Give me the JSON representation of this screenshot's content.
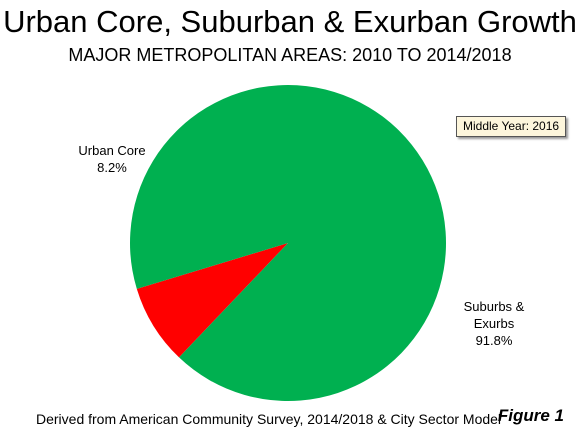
{
  "title": "Urban Core, Suburban & Exurban Growth",
  "subtitle": "MAJOR METROPOLITAN AREAS: 2010 TO 2014/2018",
  "note": "Middle Year: 2016",
  "source": "Derived from American Community Survey, 2014/2018 & City Sector Model",
  "figure_label": "Figure 1",
  "labels": {
    "core_name": "Urban Core",
    "core_value": "8.2%",
    "sub_name_1": "Suburbs &",
    "sub_name_2": "Exurbs",
    "sub_value": "91.8%"
  },
  "colors": {
    "core": "#ff0000",
    "suburbs": "#00b050"
  },
  "chart_data": {
    "type": "pie",
    "title": "Urban Core, Suburban & Exurban Growth",
    "subtitle": "MAJOR METROPOLITAN AREAS: 2010 TO 2014/2018",
    "slices": [
      {
        "label": "Urban Core",
        "value": 8.2,
        "color": "#ff0000"
      },
      {
        "label": "Suburbs & Exurbs",
        "value": 91.8,
        "color": "#00b050"
      }
    ]
  }
}
